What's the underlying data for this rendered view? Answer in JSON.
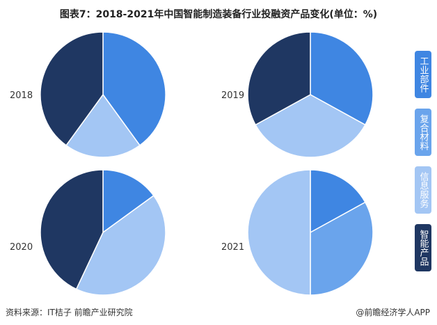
{
  "chart_data": {
    "type": "pie",
    "title": "图表7：2018-2021年中国智能制造装备行业投融资产品变化(单位：%)",
    "categories": [
      "工业部件",
      "复合材料",
      "信息服务",
      "智能产品"
    ],
    "colors": [
      "#3f86e2",
      "#6aa4ec",
      "#a3c6f4",
      "#1f3762"
    ],
    "legend_position": "right",
    "pies": [
      {
        "label": "2018",
        "values": [
          40,
          0,
          20,
          40
        ]
      },
      {
        "label": "2019",
        "values": [
          33,
          0,
          34,
          33
        ]
      },
      {
        "label": "2020",
        "values": [
          15,
          0,
          42,
          43
        ]
      },
      {
        "label": "2021",
        "values": [
          17,
          33,
          50,
          0
        ]
      }
    ]
  },
  "footer": {
    "source": "资料来源：IT桔子 前瞻产业研究院",
    "brand": "@前瞻经济学人APP"
  }
}
